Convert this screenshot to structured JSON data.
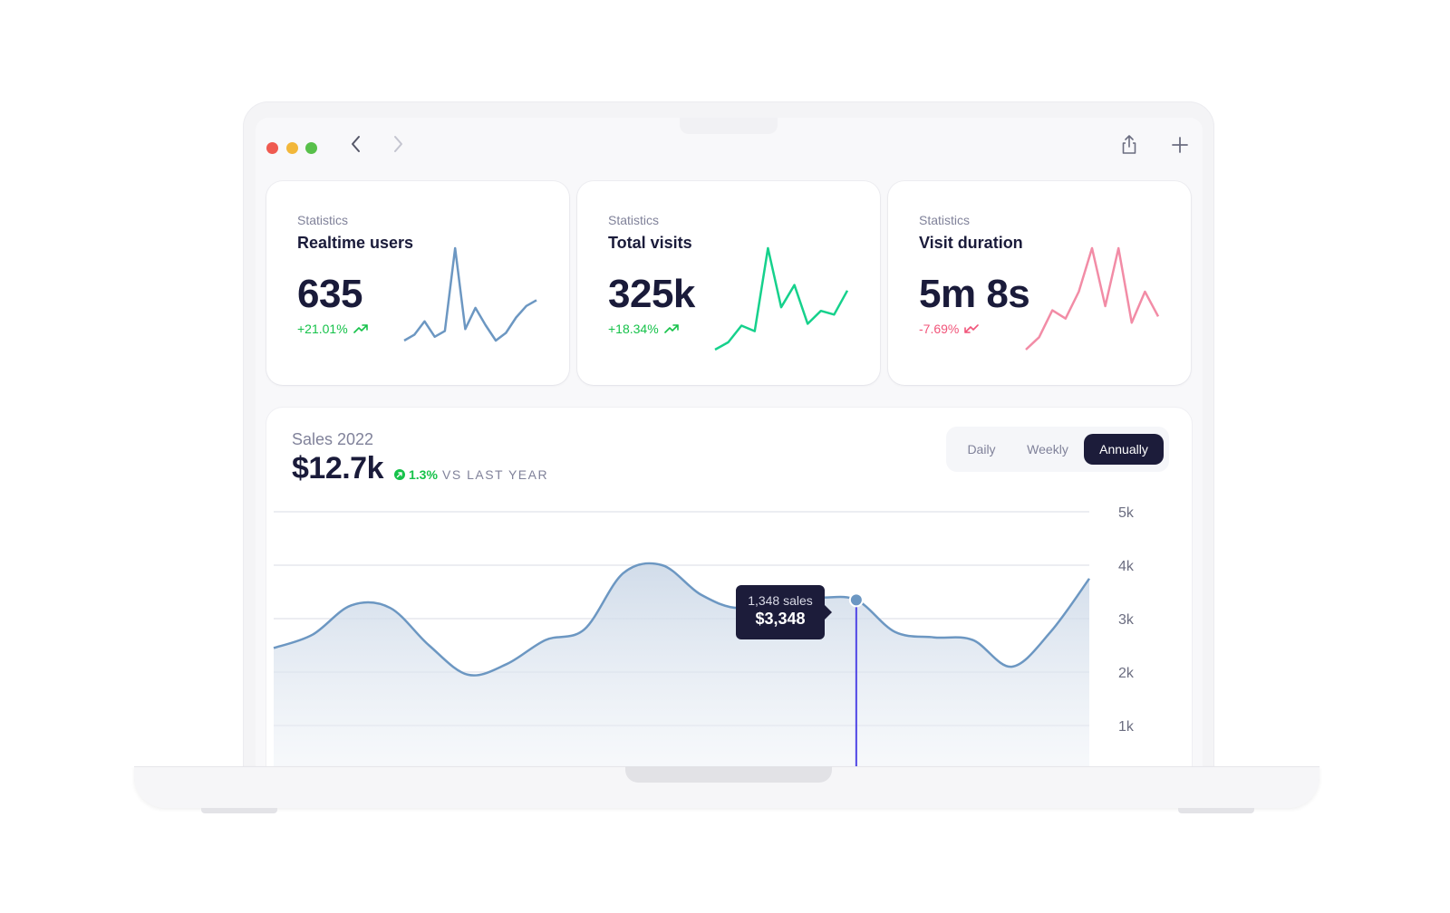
{
  "toolbar": {
    "traffic_lights": [
      "#ef5a50",
      "#f2b73a",
      "#58c04a"
    ],
    "icons": [
      "back-chevron-icon",
      "forward-chevron-icon",
      "share-icon",
      "plus-icon"
    ]
  },
  "cards": [
    {
      "eyebrow": "Statistics",
      "title": "Realtime users",
      "value": "635",
      "change": "+21.01%",
      "trend": "up",
      "color": "#6c97c2",
      "change_color": "#16c24a",
      "sparkline": [
        2,
        8,
        22,
        6,
        12,
        98,
        14,
        36,
        18,
        2,
        10,
        26,
        38,
        44
      ]
    },
    {
      "eyebrow": "Statistics",
      "title": "Total visits",
      "value": "325k",
      "change": "+18.34%",
      "trend": "up",
      "color": "#16d18c",
      "change_color": "#16c24a",
      "sparkline": [
        2,
        10,
        28,
        22,
        112,
        48,
        72,
        30,
        44,
        40,
        66
      ]
    },
    {
      "eyebrow": "Statistics",
      "title": "Visit duration",
      "value": "5m 8s",
      "change": "-7.69%",
      "trend": "down",
      "color": "#f28ca6",
      "change_color": "#f1557a",
      "sparkline": [
        2,
        14,
        40,
        32,
        58,
        100,
        44,
        100,
        28,
        58,
        34
      ]
    }
  ],
  "sales": {
    "label": "Sales 2022",
    "value": "$12.7k",
    "change": "1.3%",
    "compare": "VS LAST YEAR",
    "ranges": [
      "Daily",
      "Weekly",
      "Annually"
    ],
    "active_range": "Annually",
    "tooltip": {
      "sales": "1,348 sales",
      "amount": "$3,348"
    }
  },
  "chart_data": {
    "type": "area",
    "y_ticks": [
      "5k",
      "4k",
      "3k",
      "2k",
      "1k"
    ],
    "ylim": [
      0,
      5000
    ],
    "grid": true,
    "line_color": "#6c97c2",
    "marker_color": "#4f46e5",
    "values": [
      2450,
      2700,
      3250,
      3200,
      2500,
      1950,
      2150,
      2600,
      2800,
      3850,
      4000,
      3450,
      3200,
      3500,
      3400,
      3350,
      2750,
      2650,
      2600,
      2100,
      2750,
      3750
    ],
    "highlight_index": 15
  }
}
